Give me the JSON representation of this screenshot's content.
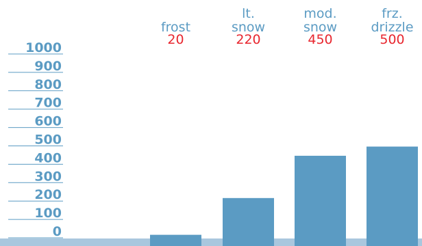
{
  "chart_data": {
    "type": "bar",
    "categories": [
      [
        "frost"
      ],
      [
        "lt.",
        "snow"
      ],
      [
        "mod.",
        "snow"
      ],
      [
        "frz.",
        "drizzle"
      ]
    ],
    "values": [
      20,
      220,
      450,
      500
    ],
    "value_labels": [
      "20",
      "220",
      "450",
      "500"
    ],
    "yticks": [
      0,
      100,
      200,
      300,
      400,
      500,
      600,
      700,
      800,
      900,
      1000
    ],
    "ylim": [
      0,
      1000
    ],
    "grid": false,
    "colors": {
      "bar": "#5b9bc3",
      "axis_band": "#a9c7de",
      "tick_line": "#5b9bc3",
      "category_label": "#5b9bc3",
      "value_label": "#e8262e"
    }
  }
}
